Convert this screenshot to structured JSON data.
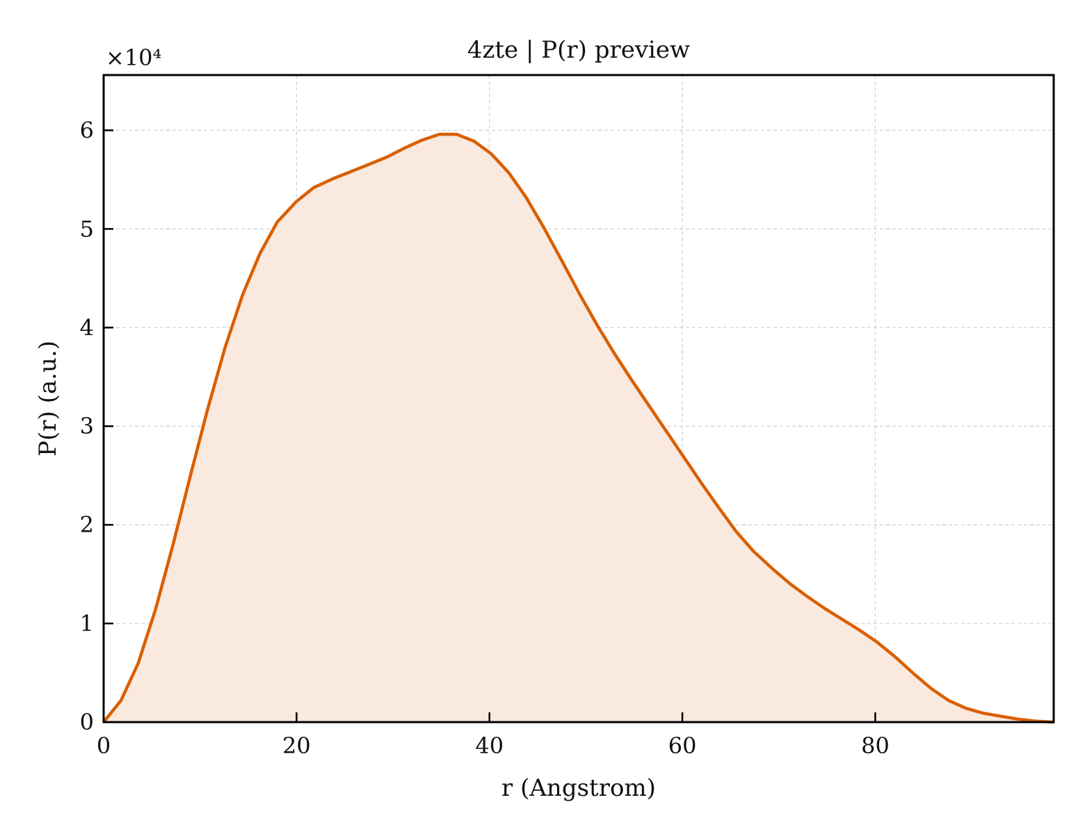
{
  "chart_data": {
    "type": "area",
    "title": "4zte | P(r) preview",
    "xlabel": "r (Angstrom)",
    "ylabel": "P(r) (a.u.)",
    "y_multiplier": "×10⁴",
    "xlim": [
      0,
      98.5
    ],
    "ylim": [
      0,
      65600
    ],
    "xticks": [
      0,
      20,
      40,
      60,
      80
    ],
    "yticks": [
      0,
      10000,
      20000,
      30000,
      40000,
      50000,
      60000
    ],
    "xtick_labels": [
      "0",
      "20",
      "40",
      "60",
      "80"
    ],
    "ytick_labels": [
      "0",
      "1",
      "2",
      "3",
      "4",
      "5",
      "6"
    ],
    "grid": true,
    "legend": "none",
    "series": [
      {
        "color": "#d95f02",
        "fill_color": "#f9e9de",
        "x": [
          0,
          1.8,
          3.6,
          5.4,
          7.2,
          9.0,
          10.8,
          12.6,
          14.4,
          16.2,
          18.0,
          20.0,
          21.8,
          23.8,
          25.6,
          27.4,
          29.4,
          31.2,
          33.0,
          34.8,
          36.6,
          38.4,
          40.2,
          42.0,
          43.8,
          45.6,
          47.6,
          49.4,
          51.2,
          53.0,
          54.8,
          56.6,
          58.4,
          60.2,
          62.0,
          63.8,
          65.6,
          67.4,
          69.4,
          71.2,
          73.0,
          74.8,
          76.6,
          78.4,
          80.2,
          82.2,
          84.0,
          85.8,
          87.6,
          89.4,
          91.2,
          93.0,
          94.8,
          96.6,
          98.5
        ],
        "y": [
          0,
          2200,
          6000,
          11500,
          18000,
          25000,
          31800,
          38000,
          43300,
          47500,
          50700,
          52800,
          54200,
          55100,
          55800,
          56500,
          57300,
          58200,
          59000,
          59600,
          59600,
          58900,
          57600,
          55700,
          53200,
          50200,
          46600,
          43300,
          40200,
          37300,
          34600,
          32000,
          29400,
          26800,
          24200,
          21700,
          19300,
          17300,
          15500,
          14000,
          12700,
          11500,
          10400,
          9300,
          8100,
          6500,
          4900,
          3400,
          2200,
          1400,
          900,
          600,
          300,
          100,
          0
        ]
      }
    ]
  }
}
